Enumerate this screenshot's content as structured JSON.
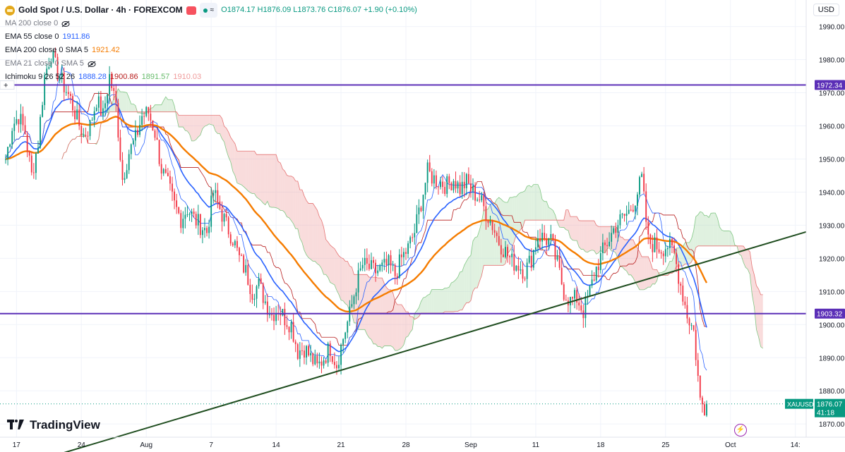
{
  "header": {
    "title": "Gold Spot / U.S. Dollar · 4h · FOREXCOM",
    "ohlc": "O1874.17 H1876.09 L1873.76 C1876.07 +1.90 (+0.10%)",
    "pill_text": "≈",
    "currency": "USD"
  },
  "indicators": [
    {
      "label": "MA 200 close 0",
      "value": "",
      "color": "#787b86",
      "hidden": true
    },
    {
      "label": "EMA 55 close 0",
      "value": "1911.86",
      "color": "#2962ff",
      "hidden": false
    },
    {
      "label": "EMA 200 close 0 SMA 5",
      "value": "1921.42",
      "color": "#f57c00",
      "hidden": false
    },
    {
      "label": "EMA 21 close 0 SMA 5",
      "value": "",
      "color": "#787b86",
      "hidden": true
    },
    {
      "label": "Ichimoku 9 26 52 26",
      "value": "1888.28",
      "color": "#2962ff",
      "hidden": false
    }
  ],
  "ichimoku_values": [
    "1888.28",
    "1900.86",
    "1891.57",
    "1910.03"
  ],
  "branding": {
    "name": "TradingView"
  },
  "chart_data": {
    "type": "candlestick",
    "symbol": "XAUUSD",
    "timeframe": "4h",
    "ylim": [
      1866,
      1998
    ],
    "y_ticks": [
      1870,
      1880,
      1890,
      1900,
      1910,
      1920,
      1930,
      1940,
      1950,
      1960,
      1970,
      1980,
      1990
    ],
    "x_ticks": [
      {
        "label": "17",
        "bar": 5
      },
      {
        "label": "24",
        "bar": 35
      },
      {
        "label": "Aug",
        "bar": 65
      },
      {
        "label": "7",
        "bar": 95
      },
      {
        "label": "14",
        "bar": 125
      },
      {
        "label": "21",
        "bar": 155
      },
      {
        "label": "28",
        "bar": 185
      },
      {
        "label": "Sep",
        "bar": 215
      },
      {
        "label": "11",
        "bar": 245
      },
      {
        "label": "18",
        "bar": 275
      },
      {
        "label": "25",
        "bar": 305
      },
      {
        "label": "Oct",
        "bar": 335
      },
      {
        "label": "14:",
        "bar": 365
      }
    ],
    "total_bars": 370,
    "close_points": [
      [
        0,
        1950
      ],
      [
        3,
        1960
      ],
      [
        6,
        1963
      ],
      [
        9,
        1958
      ],
      [
        12,
        1945
      ],
      [
        15,
        1955
      ],
      [
        18,
        1975
      ],
      [
        21,
        1982
      ],
      [
        24,
        1976
      ],
      [
        27,
        1972
      ],
      [
        30,
        1968
      ],
      [
        33,
        1962
      ],
      [
        36,
        1957
      ],
      [
        39,
        1960
      ],
      [
        42,
        1968
      ],
      [
        45,
        1963
      ],
      [
        48,
        1975
      ],
      [
        51,
        1966
      ],
      [
        54,
        1944
      ],
      [
        57,
        1952
      ],
      [
        60,
        1956
      ],
      [
        63,
        1963
      ],
      [
        66,
        1964
      ],
      [
        69,
        1958
      ],
      [
        72,
        1947
      ],
      [
        75,
        1942
      ],
      [
        78,
        1936
      ],
      [
        81,
        1932
      ],
      [
        84,
        1935
      ],
      [
        87,
        1932
      ],
      [
        90,
        1930
      ],
      [
        93,
        1928
      ],
      [
        96,
        1940
      ],
      [
        99,
        1935
      ],
      [
        102,
        1930
      ],
      [
        105,
        1926
      ],
      [
        108,
        1920
      ],
      [
        111,
        1916
      ],
      [
        114,
        1910
      ],
      [
        117,
        1912
      ],
      [
        120,
        1907
      ],
      [
        123,
        1903
      ],
      [
        126,
        1905
      ],
      [
        129,
        1902
      ],
      [
        132,
        1900
      ],
      [
        135,
        1892
      ],
      [
        138,
        1893
      ],
      [
        141,
        1890
      ],
      [
        144,
        1887
      ],
      [
        147,
        1890
      ],
      [
        150,
        1893
      ],
      [
        153,
        1888
      ],
      [
        156,
        1896
      ],
      [
        159,
        1903
      ],
      [
        162,
        1912
      ],
      [
        165,
        1918
      ],
      [
        168,
        1917
      ],
      [
        171,
        1916
      ],
      [
        174,
        1917
      ],
      [
        177,
        1918
      ],
      [
        180,
        1915
      ],
      [
        183,
        1920
      ],
      [
        186,
        1923
      ],
      [
        189,
        1928
      ],
      [
        192,
        1937
      ],
      [
        195,
        1946
      ],
      [
        198,
        1944
      ],
      [
        201,
        1943
      ],
      [
        204,
        1942
      ],
      [
        207,
        1944
      ],
      [
        210,
        1941
      ],
      [
        213,
        1943
      ],
      [
        216,
        1940
      ],
      [
        219,
        1938
      ],
      [
        222,
        1934
      ],
      [
        225,
        1930
      ],
      [
        228,
        1925
      ],
      [
        231,
        1922
      ],
      [
        234,
        1919
      ],
      [
        237,
        1918
      ],
      [
        240,
        1916
      ],
      [
        243,
        1920
      ],
      [
        246,
        1927
      ],
      [
        249,
        1926
      ],
      [
        252,
        1925
      ],
      [
        255,
        1918
      ],
      [
        258,
        1910
      ],
      [
        261,
        1907
      ],
      [
        264,
        1908
      ],
      [
        267,
        1904
      ],
      [
        270,
        1910
      ],
      [
        273,
        1917
      ],
      [
        276,
        1922
      ],
      [
        279,
        1926
      ],
      [
        282,
        1930
      ],
      [
        285,
        1932
      ],
      [
        288,
        1934
      ],
      [
        291,
        1938
      ],
      [
        294,
        1944
      ],
      [
        297,
        1925
      ],
      [
        300,
        1924
      ],
      [
        303,
        1923
      ],
      [
        306,
        1924
      ],
      [
        309,
        1921
      ],
      [
        312,
        1912
      ],
      [
        315,
        1903
      ],
      [
        318,
        1898
      ],
      [
        321,
        1877
      ],
      [
        323,
        1875
      ],
      [
        324,
        1876.07
      ]
    ],
    "last_price": "1876.07",
    "countdown": "41:18",
    "levels": [
      {
        "value": 1972.34,
        "label": "1972.34"
      },
      {
        "value": 1903.32,
        "label": "1903.32"
      }
    ],
    "trendline": {
      "from": {
        "bar": 15,
        "value": 1859
      },
      "to": {
        "bar": 370,
        "value": 1928
      }
    },
    "price_label": "XAUUSD",
    "colors": {
      "up": "#089981",
      "down": "#f23645",
      "ema55": "#2962ff",
      "ema200": "#f57c00",
      "level": "#5b2fb7",
      "trend": "#1f4d1f",
      "tenkan": "#2962ff",
      "kijun": "#b71c1c",
      "cloud_bull": "#a5d6a7",
      "cloud_bear": "#ef9a9a"
    }
  }
}
